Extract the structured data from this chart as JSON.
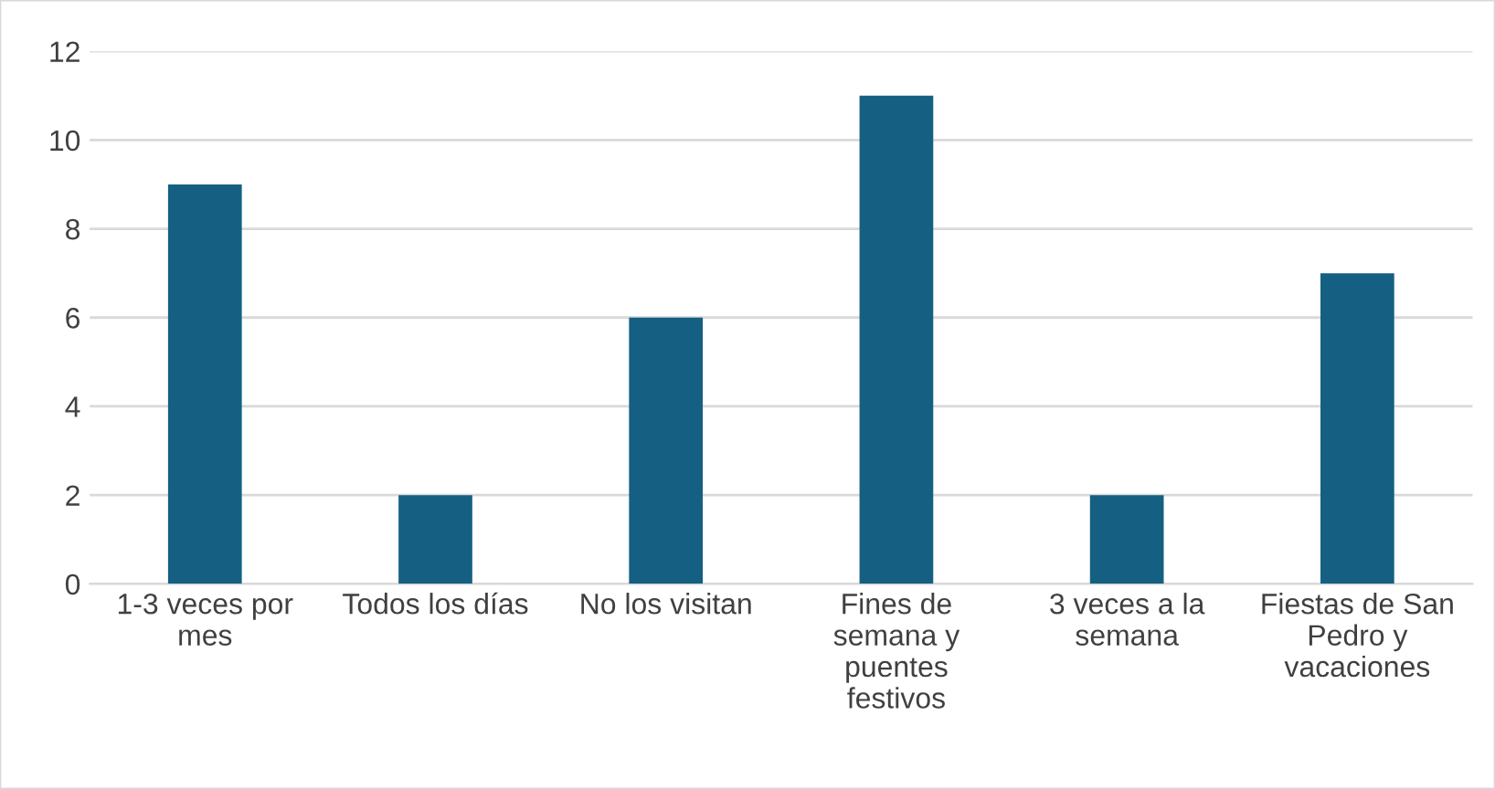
{
  "chart_data": {
    "type": "bar",
    "categories": [
      "1-3 veces por mes",
      "Todos los días",
      "No los visitan",
      "Fines de semana y puentes festivos",
      "3 veces a la semana",
      "Fiestas de San Pedro y vacaciones"
    ],
    "values": [
      9,
      2,
      6,
      11,
      2,
      7
    ],
    "color": "#156082",
    "ylim": [
      0,
      12
    ],
    "yticks": [
      0,
      2,
      4,
      6,
      8,
      10,
      12
    ],
    "grid": "y"
  }
}
